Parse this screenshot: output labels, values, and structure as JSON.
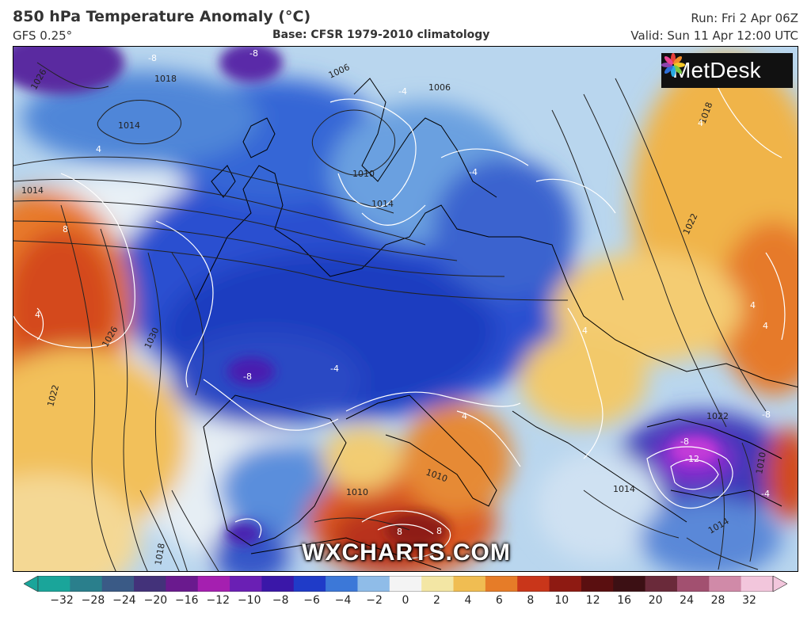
{
  "header": {
    "title": "850 hPa Temperature Anomaly (°C)",
    "model": "GFS 0.25°",
    "base": "Base: CFSR 1979-2010 climatology",
    "run": "Run: Fri 2 Apr 06Z",
    "valid": "Valid: Sun 11 Apr 12:00 UTC"
  },
  "logo": {
    "text": "MetDesk",
    "icon": "metdesk-flower-icon"
  },
  "watermark": "WXCHARTS.COM",
  "map": {
    "variable": "850 hPa temperature anomaly",
    "region": "Europe and North Atlantic",
    "isobar_labels": [
      "1026",
      "1018",
      "1014",
      "1006",
      "1006",
      "1010",
      "1014",
      "1014",
      "1026",
      "1030",
      "1022",
      "1018",
      "1022",
      "1010",
      "1014",
      "1018",
      "1022",
      "1010",
      "1014",
      "1010"
    ],
    "anomaly_labels": [
      "-8",
      "-8",
      "-4",
      "4",
      "8",
      "4",
      "-4",
      "-8",
      "-4",
      "4",
      "8",
      "4",
      "4",
      "4",
      "-8",
      "-12",
      "-8",
      "-4",
      "8",
      "4"
    ]
  },
  "colorbar": {
    "ticks": [
      "−32",
      "−28",
      "−24",
      "−20",
      "−16",
      "−12",
      "−10",
      "−8",
      "−6",
      "−4",
      "−2",
      "0",
      "2",
      "4",
      "6",
      "8",
      "10",
      "12",
      "16",
      "20",
      "24",
      "28",
      "32"
    ],
    "colors": [
      "#1aa59a",
      "#2a7f8c",
      "#3a5a86",
      "#43327a",
      "#6a1a8e",
      "#a51fb0",
      "#6a1fb4",
      "#3a17a8",
      "#1f3bc8",
      "#3c78d8",
      "#8fbce8",
      "#f4f4f4",
      "#f3e6a4",
      "#f0bd52",
      "#e67c28",
      "#c9361a",
      "#8e1a12",
      "#5a0f10",
      "#3c1014",
      "#6a2a3a",
      "#a25070",
      "#d08aa8",
      "#f2c6dc"
    ]
  }
}
